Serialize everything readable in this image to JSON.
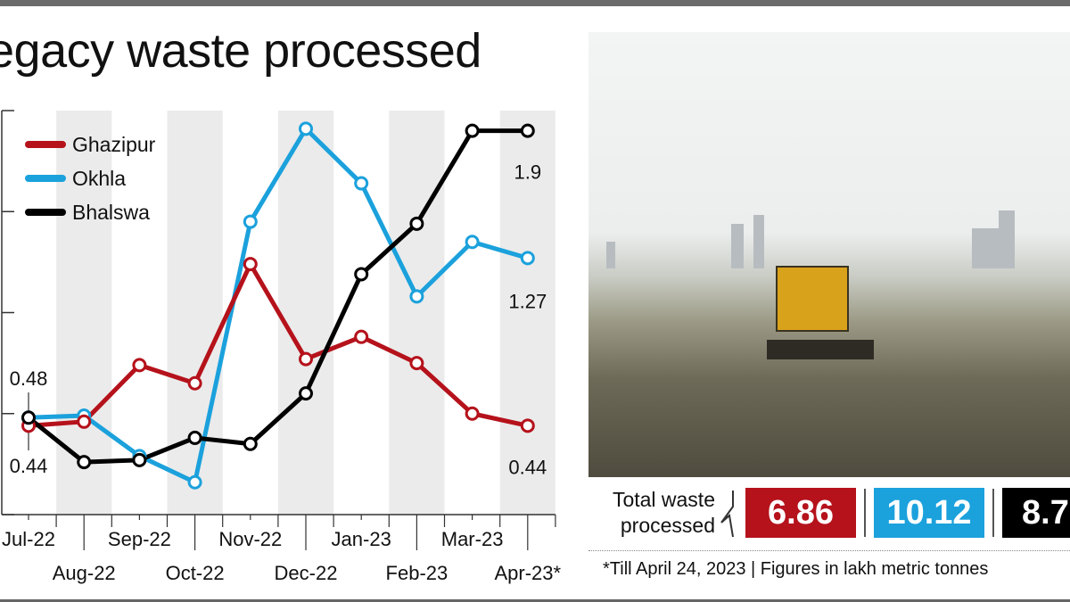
{
  "title": "egacy waste processed",
  "chart_data": {
    "type": "line",
    "title": "egacy waste processed",
    "categories": [
      "Jul-22",
      "Aug-22",
      "Sep-22",
      "Oct-22",
      "Nov-22",
      "Dec-22",
      "Jan-23",
      "Feb-23",
      "Mar-23",
      "Apr-23*"
    ],
    "ylim": [
      0,
      2
    ],
    "yticks": [
      0,
      0.5,
      1.0,
      1.5,
      2.0
    ],
    "grid": false,
    "alternate_column_shading": true,
    "legend_placement": "top-left",
    "series": [
      {
        "name": "Ghazipur",
        "color": "#b5121b",
        "values": [
          0.44,
          0.46,
          0.74,
          0.65,
          1.24,
          0.77,
          0.88,
          0.75,
          0.5,
          0.44
        ]
      },
      {
        "name": "Okhla",
        "color": "#1ba1dc",
        "values": [
          0.48,
          0.49,
          0.29,
          0.16,
          1.45,
          1.91,
          1.64,
          1.08,
          1.35,
          1.27
        ]
      },
      {
        "name": "Bhalswa",
        "color": "#000000",
        "values": [
          0.48,
          0.26,
          0.27,
          0.38,
          0.35,
          0.6,
          1.19,
          1.44,
          1.9,
          1.9
        ]
      }
    ],
    "annotations": [
      {
        "text": "0.48",
        "series": "Okhla",
        "category": "Jul-22"
      },
      {
        "text": "0.44",
        "series": "Ghazipur",
        "category": "Jul-22"
      },
      {
        "text": "1.9",
        "series": "Bhalswa",
        "category": "Apr-23*"
      },
      {
        "text": "1.27",
        "series": "Okhla",
        "category": "Apr-23*"
      },
      {
        "text": "0.44",
        "series": "Ghazipur",
        "category": "Apr-23*"
      }
    ]
  },
  "totals": {
    "label_line1": "Total waste",
    "label_line2": "processed",
    "ghazipur": "6.86",
    "okhla": "10.12",
    "bhalswa": "8.7"
  },
  "footnote": "*Till April 24, 2023 | Figures in lakh metric tonnes"
}
